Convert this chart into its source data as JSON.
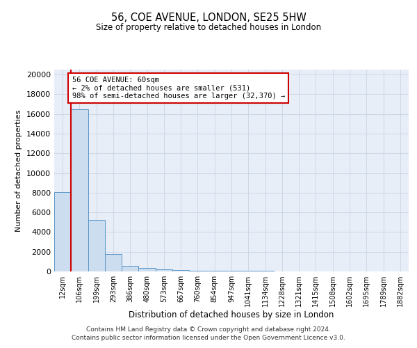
{
  "title1": "56, COE AVENUE, LONDON, SE25 5HW",
  "title2": "Size of property relative to detached houses in London",
  "xlabel": "Distribution of detached houses by size in London",
  "ylabel": "Number of detached properties",
  "categories": [
    "12sqm",
    "106sqm",
    "199sqm",
    "293sqm",
    "386sqm",
    "480sqm",
    "573sqm",
    "667sqm",
    "760sqm",
    "854sqm",
    "947sqm",
    "1041sqm",
    "1134sqm",
    "1228sqm",
    "1321sqm",
    "1415sqm",
    "1508sqm",
    "1602sqm",
    "1695sqm",
    "1789sqm",
    "1882sqm"
  ],
  "bar_values": [
    8050,
    16500,
    5200,
    1750,
    600,
    350,
    200,
    150,
    100,
    80,
    60,
    50,
    40,
    30,
    25,
    20,
    15,
    10,
    8,
    5,
    3
  ],
  "bar_color": "#ccddf0",
  "bar_edge_color": "#5a96c8",
  "grid_color": "#c8d4e4",
  "bg_color": "#e8eef8",
  "property_line_color": "#cc0000",
  "annotation_line1": "56 COE AVENUE: 60sqm",
  "annotation_line2": "← 2% of detached houses are smaller (531)",
  "annotation_line3": "98% of semi-detached houses are larger (32,370) →",
  "annotation_box_color": "#ffffff",
  "annotation_box_edge": "#cc0000",
  "ylim": [
    0,
    20500
  ],
  "yticks": [
    0,
    2000,
    4000,
    6000,
    8000,
    10000,
    12000,
    14000,
    16000,
    18000,
    20000
  ],
  "footer1": "Contains HM Land Registry data © Crown copyright and database right 2024.",
  "footer2": "Contains public sector information licensed under the Open Government Licence v3.0."
}
